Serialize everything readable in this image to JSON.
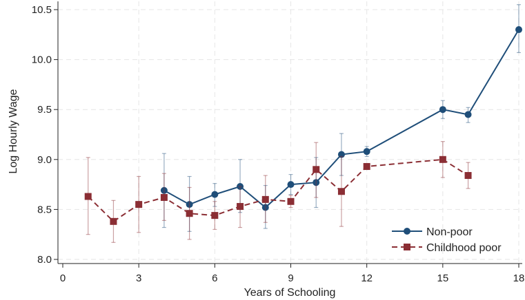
{
  "chart_data": {
    "type": "line",
    "xlabel": "Years of Schooling",
    "ylabel": "Log Hourly Wage",
    "xlim": [
      0,
      18
    ],
    "ylim": [
      8.0,
      10.5
    ],
    "x_ticks": [
      0,
      3,
      6,
      9,
      12,
      15,
      18
    ],
    "x_tick_labels": [
      "0",
      "3",
      "6",
      "9",
      "12",
      "15",
      "18"
    ],
    "y_ticks": [
      8.0,
      8.5,
      9.0,
      9.5,
      10.0,
      10.5
    ],
    "y_tick_labels": [
      "8.0",
      "8.5",
      "9.0",
      "9.5",
      "10.0",
      "10.5"
    ],
    "grid": true,
    "legend_position": "bottom-right",
    "series": [
      {
        "name": "Non-poor",
        "color": "#1f4e79",
        "marker": "circle",
        "line_style": "solid",
        "points": [
          {
            "x": 4,
            "y": 8.69,
            "lo": 8.32,
            "hi": 9.06
          },
          {
            "x": 5,
            "y": 8.55,
            "lo": 8.28,
            "hi": 8.83
          },
          {
            "x": 6,
            "y": 8.65,
            "lo": 8.53,
            "hi": 8.76
          },
          {
            "x": 7,
            "y": 8.73,
            "lo": 8.47,
            "hi": 9.0
          },
          {
            "x": 8,
            "y": 8.52,
            "lo": 8.31,
            "hi": 8.74
          },
          {
            "x": 9,
            "y": 8.75,
            "lo": 8.65,
            "hi": 8.85
          },
          {
            "x": 10,
            "y": 8.77,
            "lo": 8.52,
            "hi": 9.02
          },
          {
            "x": 11,
            "y": 9.05,
            "lo": 8.84,
            "hi": 9.26
          },
          {
            "x": 12,
            "y": 9.08,
            "lo": 9.03,
            "hi": 9.13
          },
          {
            "x": 15,
            "y": 9.5,
            "lo": 9.41,
            "hi": 9.59
          },
          {
            "x": 16,
            "y": 9.45,
            "lo": 9.37,
            "hi": 9.52
          },
          {
            "x": 18,
            "y": 10.3,
            "lo": 10.07,
            "hi": 10.55
          }
        ]
      },
      {
        "name": "Childhood poor",
        "color": "#8b2e34",
        "marker": "square",
        "line_style": "dashed",
        "points": [
          {
            "x": 1,
            "y": 8.63,
            "lo": 8.25,
            "hi": 9.02
          },
          {
            "x": 2,
            "y": 8.38,
            "lo": 8.17,
            "hi": 8.59
          },
          {
            "x": 3,
            "y": 8.55,
            "lo": 8.27,
            "hi": 8.83
          },
          {
            "x": 4,
            "y": 8.62,
            "lo": 8.39,
            "hi": 8.86
          },
          {
            "x": 5,
            "y": 8.46,
            "lo": 8.2,
            "hi": 8.72
          },
          {
            "x": 6,
            "y": 8.44,
            "lo": 8.3,
            "hi": 8.58
          },
          {
            "x": 7,
            "y": 8.53,
            "lo": 8.32,
            "hi": 8.73
          },
          {
            "x": 8,
            "y": 8.6,
            "lo": 8.37,
            "hi": 8.84
          },
          {
            "x": 9,
            "y": 8.58,
            "lo": 8.52,
            "hi": 8.64
          },
          {
            "x": 10,
            "y": 8.9,
            "lo": 8.62,
            "hi": 9.17
          },
          {
            "x": 11,
            "y": 8.68,
            "lo": 8.33,
            "hi": 9.03
          },
          {
            "x": 12,
            "y": 8.93,
            "lo": 8.9,
            "hi": 8.96
          },
          {
            "x": 15,
            "y": 9.0,
            "lo": 8.82,
            "hi": 9.18
          },
          {
            "x": 16,
            "y": 8.84,
            "lo": 8.71,
            "hi": 8.97
          }
        ]
      }
    ]
  }
}
